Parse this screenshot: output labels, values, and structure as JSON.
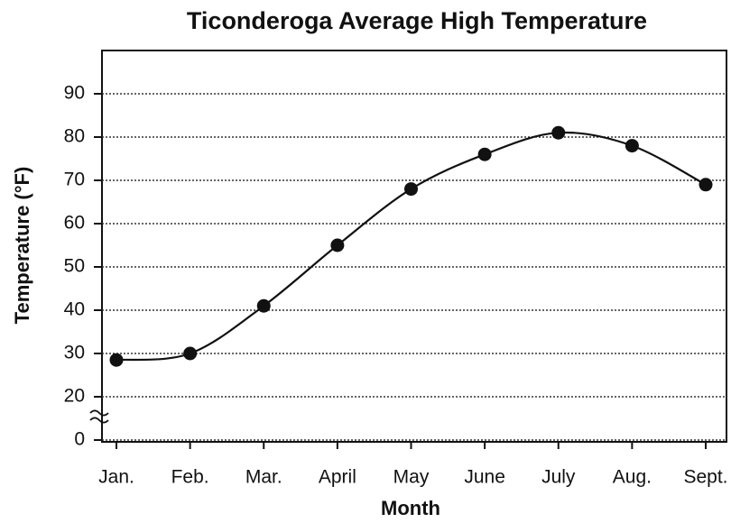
{
  "chart_data": {
    "type": "line",
    "title": "Ticonderoga Average High Temperature",
    "x_label": "Month",
    "y_label": "Temperature (°F)",
    "categories": [
      "Jan.",
      "Feb.",
      "Mar.",
      "April",
      "May",
      "June",
      "July",
      "Aug.",
      "Sept."
    ],
    "values": [
      28.5,
      30,
      41,
      55,
      68,
      76,
      81,
      78,
      69
    ],
    "color": "#111111",
    "ylim": [
      0,
      100
    ],
    "yticks": [
      0,
      20,
      30,
      40,
      50,
      60,
      70,
      80,
      90
    ],
    "y_break": [
      0,
      20
    ],
    "grid": true
  }
}
